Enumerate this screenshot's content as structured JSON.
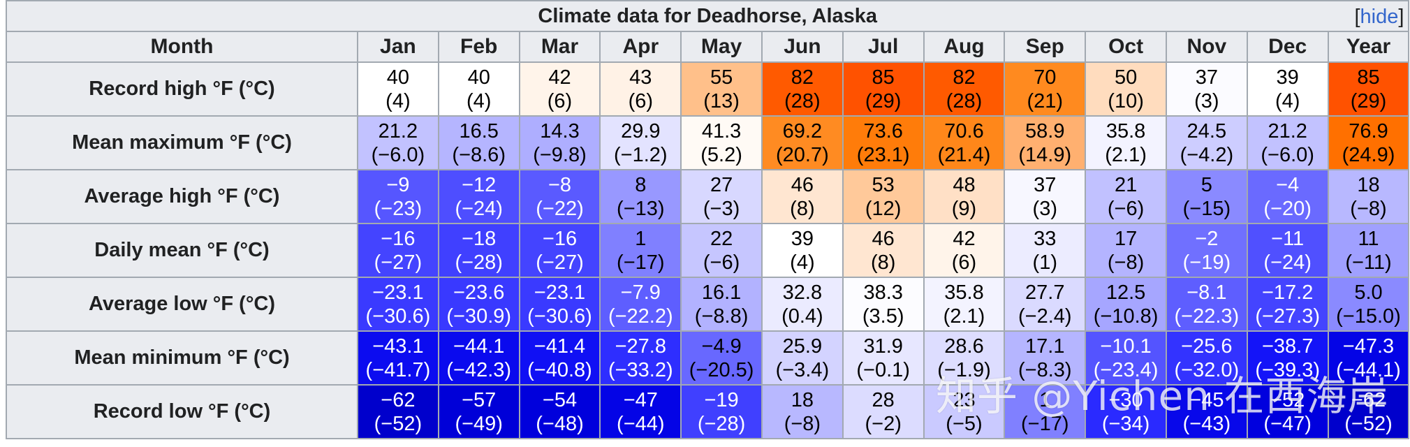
{
  "title": "Climate data for Deadhorse, Alaska",
  "hide_bracket_open": "[",
  "hide_label": "hide",
  "hide_bracket_close": "]",
  "month_header": "Month",
  "columns": [
    "Jan",
    "Feb",
    "Mar",
    "Apr",
    "May",
    "Jun",
    "Jul",
    "Aug",
    "Sep",
    "Oct",
    "Nov",
    "Dec",
    "Year"
  ],
  "rows": [
    {
      "label": "Record high °F (°C)",
      "cells": [
        {
          "f": "40",
          "c": "(4)",
          "bg": "#ffffff",
          "fg": "#000000"
        },
        {
          "f": "40",
          "c": "(4)",
          "bg": "#ffffff",
          "fg": "#000000"
        },
        {
          "f": "42",
          "c": "(6)",
          "bg": "#fff4ea",
          "fg": "#000000"
        },
        {
          "f": "43",
          "c": "(6)",
          "bg": "#fff2e6",
          "fg": "#000000"
        },
        {
          "f": "55",
          "c": "(13)",
          "bg": "#ffc08a",
          "fg": "#000000"
        },
        {
          "f": "82",
          "c": "(28)",
          "bg": "#ff5a00",
          "fg": "#000000"
        },
        {
          "f": "85",
          "c": "(29)",
          "bg": "#ff5200",
          "fg": "#000000"
        },
        {
          "f": "82",
          "c": "(28)",
          "bg": "#ff5a00",
          "fg": "#000000"
        },
        {
          "f": "70",
          "c": "(21)",
          "bg": "#ff8a1f",
          "fg": "#000000"
        },
        {
          "f": "50",
          "c": "(10)",
          "bg": "#ffdcbe",
          "fg": "#000000"
        },
        {
          "f": "37",
          "c": "(3)",
          "bg": "#fbfbff",
          "fg": "#000000"
        },
        {
          "f": "39",
          "c": "(4)",
          "bg": "#ffffff",
          "fg": "#000000"
        },
        {
          "f": "85",
          "c": "(29)",
          "bg": "#ff5200",
          "fg": "#000000"
        }
      ]
    },
    {
      "label": "Mean maximum °F (°C)",
      "cells": [
        {
          "f": "21.2",
          "c": "(−6.0)",
          "bg": "#c2c2ff",
          "fg": "#000000"
        },
        {
          "f": "16.5",
          "c": "(−8.6)",
          "bg": "#b5b5ff",
          "fg": "#000000"
        },
        {
          "f": "14.3",
          "c": "(−9.8)",
          "bg": "#aeaeff",
          "fg": "#000000"
        },
        {
          "f": "29.9",
          "c": "(−1.2)",
          "bg": "#e3e3ff",
          "fg": "#000000"
        },
        {
          "f": "41.3",
          "c": "(5.2)",
          "bg": "#fffaf5",
          "fg": "#000000"
        },
        {
          "f": "69.2",
          "c": "(20.7)",
          "bg": "#ff8b22",
          "fg": "#000000"
        },
        {
          "f": "73.6",
          "c": "(23.1)",
          "bg": "#ff7c0a",
          "fg": "#000000"
        },
        {
          "f": "70.6",
          "c": "(21.4)",
          "bg": "#ff871a",
          "fg": "#000000"
        },
        {
          "f": "58.9",
          "c": "(14.9)",
          "bg": "#ffb070",
          "fg": "#000000"
        },
        {
          "f": "35.8",
          "c": "(2.1)",
          "bg": "#f3f3ff",
          "fg": "#000000"
        },
        {
          "f": "24.5",
          "c": "(−4.2)",
          "bg": "#cdcdff",
          "fg": "#000000"
        },
        {
          "f": "21.2",
          "c": "(−6.0)",
          "bg": "#c2c2ff",
          "fg": "#000000"
        },
        {
          "f": "76.9",
          "c": "(24.9)",
          "bg": "#ff7000",
          "fg": "#000000"
        }
      ]
    },
    {
      "label": "Average high °F (°C)",
      "cells": [
        {
          "f": "−9",
          "c": "(−23)",
          "bg": "#5656ff",
          "fg": "#ffffff"
        },
        {
          "f": "−12",
          "c": "(−24)",
          "bg": "#4e4eff",
          "fg": "#ffffff"
        },
        {
          "f": "−8",
          "c": "(−22)",
          "bg": "#5a5aff",
          "fg": "#ffffff"
        },
        {
          "f": "8",
          "c": "(−13)",
          "bg": "#9898ff",
          "fg": "#000000"
        },
        {
          "f": "27",
          "c": "(−3)",
          "bg": "#d8d8ff",
          "fg": "#000000"
        },
        {
          "f": "46",
          "c": "(8)",
          "bg": "#ffe6d1",
          "fg": "#000000"
        },
        {
          "f": "53",
          "c": "(12)",
          "bg": "#ffc99a",
          "fg": "#000000"
        },
        {
          "f": "48",
          "c": "(9)",
          "bg": "#ffe0c6",
          "fg": "#000000"
        },
        {
          "f": "37",
          "c": "(3)",
          "bg": "#f7f7ff",
          "fg": "#000000"
        },
        {
          "f": "21",
          "c": "(−6)",
          "bg": "#c1c1ff",
          "fg": "#000000"
        },
        {
          "f": "5",
          "c": "(−15)",
          "bg": "#8a8aff",
          "fg": "#000000"
        },
        {
          "f": "−4",
          "c": "(−20)",
          "bg": "#6a6aff",
          "fg": "#ffffff"
        },
        {
          "f": "18",
          "c": "(−8)",
          "bg": "#b8b8ff",
          "fg": "#000000"
        }
      ]
    },
    {
      "label": "Daily mean °F (°C)",
      "cells": [
        {
          "f": "−16",
          "c": "(−27)",
          "bg": "#4444ff",
          "fg": "#ffffff"
        },
        {
          "f": "−18",
          "c": "(−28)",
          "bg": "#4040ff",
          "fg": "#ffffff"
        },
        {
          "f": "−16",
          "c": "(−27)",
          "bg": "#4444ff",
          "fg": "#ffffff"
        },
        {
          "f": "1",
          "c": "(−17)",
          "bg": "#8080ff",
          "fg": "#000000"
        },
        {
          "f": "22",
          "c": "(−6)",
          "bg": "#c6c6ff",
          "fg": "#000000"
        },
        {
          "f": "39",
          "c": "(4)",
          "bg": "#ffffff",
          "fg": "#000000"
        },
        {
          "f": "46",
          "c": "(8)",
          "bg": "#ffe6d1",
          "fg": "#000000"
        },
        {
          "f": "42",
          "c": "(6)",
          "bg": "#fff4ea",
          "fg": "#000000"
        },
        {
          "f": "33",
          "c": "(1)",
          "bg": "#ececff",
          "fg": "#000000"
        },
        {
          "f": "17",
          "c": "(−8)",
          "bg": "#b4b4ff",
          "fg": "#000000"
        },
        {
          "f": "−2",
          "c": "(−19)",
          "bg": "#7070ff",
          "fg": "#ffffff"
        },
        {
          "f": "−11",
          "c": "(−24)",
          "bg": "#5050ff",
          "fg": "#ffffff"
        },
        {
          "f": "11",
          "c": "(−11)",
          "bg": "#a0a0ff",
          "fg": "#000000"
        }
      ]
    },
    {
      "label": "Average low °F (°C)",
      "cells": [
        {
          "f": "−23.1",
          "c": "(−30.6)",
          "bg": "#3a3aff",
          "fg": "#ffffff"
        },
        {
          "f": "−23.6",
          "c": "(−30.9)",
          "bg": "#3939ff",
          "fg": "#ffffff"
        },
        {
          "f": "−23.1",
          "c": "(−30.6)",
          "bg": "#3a3aff",
          "fg": "#ffffff"
        },
        {
          "f": "−7.9",
          "c": "(−22.2)",
          "bg": "#5e5eff",
          "fg": "#ffffff"
        },
        {
          "f": "16.1",
          "c": "(−8.8)",
          "bg": "#b2b2ff",
          "fg": "#000000"
        },
        {
          "f": "32.8",
          "c": "(0.4)",
          "bg": "#ebebff",
          "fg": "#000000"
        },
        {
          "f": "38.3",
          "c": "(3.5)",
          "bg": "#fcfcff",
          "fg": "#000000"
        },
        {
          "f": "35.8",
          "c": "(2.1)",
          "bg": "#f3f3ff",
          "fg": "#000000"
        },
        {
          "f": "27.7",
          "c": "(−2.4)",
          "bg": "#dadaff",
          "fg": "#000000"
        },
        {
          "f": "12.5",
          "c": "(−10.8)",
          "bg": "#a6a6ff",
          "fg": "#000000"
        },
        {
          "f": "−8.1",
          "c": "(−22.3)",
          "bg": "#5e5eff",
          "fg": "#ffffff"
        },
        {
          "f": "−17.2",
          "c": "(−27.3)",
          "bg": "#4444ff",
          "fg": "#ffffff"
        },
        {
          "f": "5.0",
          "c": "(−15.0)",
          "bg": "#8a8aff",
          "fg": "#000000"
        }
      ]
    },
    {
      "label": "Mean minimum °F (°C)",
      "cells": [
        {
          "f": "−43.1",
          "c": "(−41.7)",
          "bg": "#0c0cf0",
          "fg": "#ffffff"
        },
        {
          "f": "−44.1",
          "c": "(−42.3)",
          "bg": "#0a0aee",
          "fg": "#ffffff"
        },
        {
          "f": "−41.4",
          "c": "(−40.8)",
          "bg": "#1010f4",
          "fg": "#ffffff"
        },
        {
          "f": "−27.8",
          "c": "(−33.2)",
          "bg": "#2e2eff",
          "fg": "#ffffff"
        },
        {
          "f": "−4.9",
          "c": "(−20.5)",
          "bg": "#6868ff",
          "fg": "#000000"
        },
        {
          "f": "25.9",
          "c": "(−3.4)",
          "bg": "#d3d3ff",
          "fg": "#000000"
        },
        {
          "f": "31.9",
          "c": "(−0.1)",
          "bg": "#e7e7ff",
          "fg": "#000000"
        },
        {
          "f": "28.6",
          "c": "(−1.9)",
          "bg": "#ddddff",
          "fg": "#000000"
        },
        {
          "f": "17.1",
          "c": "(−8.3)",
          "bg": "#b5b5ff",
          "fg": "#000000"
        },
        {
          "f": "−10.1",
          "c": "(−23.4)",
          "bg": "#5454ff",
          "fg": "#ffffff"
        },
        {
          "f": "−25.6",
          "c": "(−32.0)",
          "bg": "#3333ff",
          "fg": "#ffffff"
        },
        {
          "f": "−38.7",
          "c": "(−39.3)",
          "bg": "#1414f8",
          "fg": "#ffffff"
        },
        {
          "f": "−47.3",
          "c": "(−44.1)",
          "bg": "#0404e6",
          "fg": "#ffffff"
        }
      ]
    },
    {
      "label": "Record low °F (°C)",
      "cells": [
        {
          "f": "−62",
          "c": "(−52)",
          "bg": "#0000cc",
          "fg": "#ffffff"
        },
        {
          "f": "−57",
          "c": "(−49)",
          "bg": "#0000d8",
          "fg": "#ffffff"
        },
        {
          "f": "−54",
          "c": "(−48)",
          "bg": "#0000dc",
          "fg": "#ffffff"
        },
        {
          "f": "−47",
          "c": "(−44)",
          "bg": "#0404e6",
          "fg": "#ffffff"
        },
        {
          "f": "−19",
          "c": "(−28)",
          "bg": "#4040ff",
          "fg": "#ffffff"
        },
        {
          "f": "18",
          "c": "(−8)",
          "bg": "#b8b8ff",
          "fg": "#000000"
        },
        {
          "f": "28",
          "c": "(−2)",
          "bg": "#dcdcff",
          "fg": "#000000"
        },
        {
          "f": "23",
          "c": "(−5)",
          "bg": "#caCAff",
          "fg": "#000000"
        },
        {
          "f": "1",
          "c": "(−17)",
          "bg": "#8080ff",
          "fg": "#000000"
        },
        {
          "f": "−30",
          "c": "(−34)",
          "bg": "#2a2aff",
          "fg": "#ffffff"
        },
        {
          "f": "−45",
          "c": "(−43)",
          "bg": "#0808ea",
          "fg": "#ffffff"
        },
        {
          "f": "−52",
          "c": "(−47)",
          "bg": "#0000de",
          "fg": "#ffffff"
        },
        {
          "f": "−62",
          "c": "(−52)",
          "bg": "#0000cc",
          "fg": "#ffffff"
        }
      ]
    }
  ],
  "watermark": "知乎 @Yichen 在西海岸"
}
